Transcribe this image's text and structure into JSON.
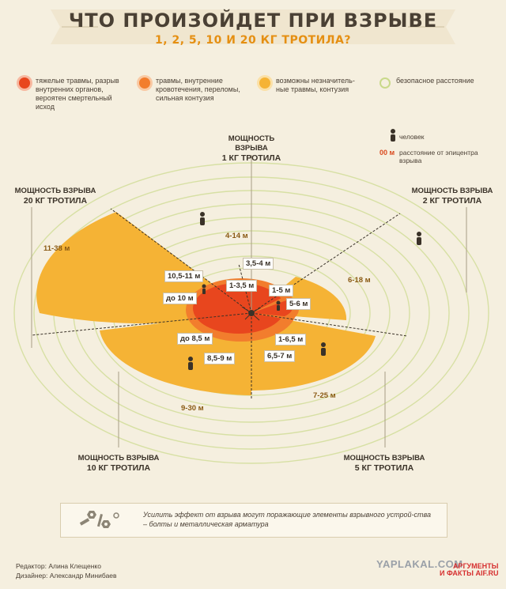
{
  "title": {
    "main": "ЧТО ПРОИЗОЙДЕТ ПРИ ВЗРЫВЕ",
    "sub": "1, 2, 5, 10 И 20 КГ ТРОТИЛА?"
  },
  "colors": {
    "severe": "#e8461e",
    "medium": "#f27d2d",
    "light": "#f5b335",
    "safe": "#dfe7b2",
    "bg": "#f5efdf"
  },
  "legend": [
    {
      "color": "#e8461e",
      "text": "тяжелые травмы, разрыв внутренних органов, вероятен смертельный исход"
    },
    {
      "color": "#f27d2d",
      "text": "травмы, внутренние кровотечения, переломы, сильная контузия"
    },
    {
      "color": "#f5b335",
      "text": "возможны незначитель-ные травмы, контузия"
    },
    {
      "color": "#dfe7b2",
      "text": "безопасное расстояние"
    }
  ],
  "mini_legend": {
    "person_label": "человек",
    "distance_symbol": "00 м",
    "distance_label": "расстояние от эпицентра взрыва"
  },
  "power_labels": {
    "p1": {
      "line1": "МОЩНОСТЬ ВЗРЫВА",
      "line2": "1 КГ ТРОТИЛА"
    },
    "p2": {
      "line1": "МОЩНОСТЬ ВЗРЫВА",
      "line2": "2 КГ ТРОТИЛА"
    },
    "p5": {
      "line1": "МОЩНОСТЬ ВЗРЫВА",
      "line2": "5 КГ ТРОТИЛА"
    },
    "p10": {
      "line1": "МОЩНОСТЬ ВЗРЫВА",
      "line2": "10 КГ ТРОТИЛА"
    },
    "p20": {
      "line1": "МОЩНОСТЬ ВЗРЫВА",
      "line2": "20 КГ ТРОТИЛА"
    }
  },
  "distances": {
    "d1_inner": "1-3,5 м",
    "d1_outer": "3,5-4 м",
    "d1_safe": "4-14 м",
    "d2_inner": "1-5 м",
    "d2_outer": "5-6 м",
    "d2_safe": "6-18 м",
    "d5_inner": "1-6,5 м",
    "d5_outer": "6,5-7 м",
    "d5_safe": "7-25 м",
    "d10_inner": "до 8,5 м",
    "d10_outer": "8,5-9 м",
    "d10_safe": "9-30 м",
    "d20_inner": "до 10 м",
    "d20_outer": "10,5-11 м",
    "d20_safe": "11-38 м"
  },
  "note": "Усилить эффект от взрыва могут поражающие элементы взрывного устрой-ства – болты и металлическая арматура",
  "credits": {
    "editor": "Редактор: Алина Клещенко",
    "designer": "Дизайнер: Александр Минибаев"
  },
  "watermarks": {
    "yaplakal": "YAPLAKAL.COM",
    "aif_line1": "АРГУМЕНТЫ",
    "aif_line2": "И ФАКТЫ AIF.RU"
  }
}
